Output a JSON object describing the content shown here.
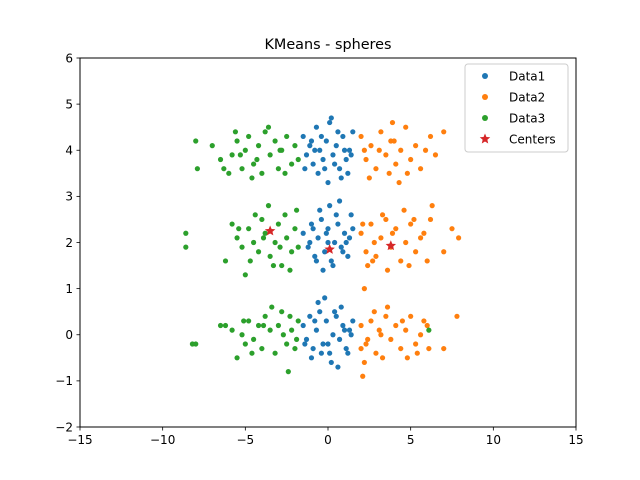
{
  "chart_data": {
    "type": "scatter",
    "title": "KMeans - spheres",
    "xlabel": "",
    "ylabel": "",
    "xlim": [
      -15,
      15
    ],
    "ylim": [
      -2,
      6
    ],
    "xticks": [
      "−15",
      "−10",
      "−5",
      "0",
      "5",
      "10",
      "15"
    ],
    "xtick_values": [
      -15,
      -10,
      -5,
      0,
      5,
      10,
      15
    ],
    "yticks": [
      "−2",
      "−1",
      "0",
      "1",
      "2",
      "3",
      "4",
      "5",
      "6"
    ],
    "ytick_values": [
      -2,
      -1,
      0,
      1,
      2,
      3,
      4,
      5,
      6
    ],
    "grid": false,
    "legend_position": "top-right",
    "series": [
      {
        "name": "Data1",
        "color": "#1f77b4",
        "marker": "circle",
        "points": [
          [
            -1.5,
            4.3
          ],
          [
            -1.3,
            3.9
          ],
          [
            -1.1,
            4.1
          ],
          [
            -0.9,
            3.7
          ],
          [
            -0.7,
            4.5
          ],
          [
            -0.5,
            4.0
          ],
          [
            -0.3,
            3.8
          ],
          [
            -0.1,
            4.2
          ],
          [
            0.1,
            4.6
          ],
          [
            0.3,
            3.9
          ],
          [
            0.5,
            4.1
          ],
          [
            0.7,
            3.6
          ],
          [
            0.9,
            4.3
          ],
          [
            1.1,
            3.8
          ],
          [
            1.3,
            4.0
          ],
          [
            1.5,
            4.4
          ],
          [
            -0.6,
            3.5
          ],
          [
            0.2,
            4.7
          ],
          [
            0.8,
            3.4
          ],
          [
            -1.0,
            4.2
          ],
          [
            1.2,
            3.5
          ],
          [
            -0.2,
            3.6
          ],
          [
            0.6,
            4.4
          ],
          [
            -0.8,
            4.0
          ],
          [
            1.4,
            3.9
          ],
          [
            0.0,
            3.3
          ],
          [
            0.4,
            3.7
          ],
          [
            -1.4,
            3.6
          ],
          [
            1.0,
            4.0
          ],
          [
            -0.4,
            4.3
          ],
          [
            -1.5,
            2.2
          ],
          [
            -1.2,
            1.9
          ],
          [
            -1.0,
            2.4
          ],
          [
            -0.8,
            1.7
          ],
          [
            -0.6,
            2.1
          ],
          [
            -0.4,
            2.5
          ],
          [
            -0.2,
            1.8
          ],
          [
            0.0,
            2.3
          ],
          [
            0.2,
            1.6
          ],
          [
            0.4,
            2.0
          ],
          [
            0.6,
            2.4
          ],
          [
            0.8,
            1.9
          ],
          [
            1.0,
            2.2
          ],
          [
            1.2,
            1.7
          ],
          [
            1.4,
            2.6
          ],
          [
            0.1,
            2.8
          ],
          [
            -0.3,
            1.4
          ],
          [
            0.7,
            2.9
          ],
          [
            -0.9,
            2.3
          ],
          [
            1.1,
            2.0
          ],
          [
            0.3,
            1.5
          ],
          [
            -0.5,
            2.7
          ],
          [
            0.9,
            1.8
          ],
          [
            -1.1,
            2.0
          ],
          [
            1.5,
            2.3
          ],
          [
            0.5,
            2.6
          ],
          [
            -0.7,
            1.6
          ],
          [
            0.0,
            2.0
          ],
          [
            1.3,
            2.1
          ],
          [
            -0.1,
            2.2
          ],
          [
            -1.5,
            0.2
          ],
          [
            -1.3,
            -0.1
          ],
          [
            -1.1,
            0.4
          ],
          [
            -0.9,
            -0.3
          ],
          [
            -0.7,
            0.1
          ],
          [
            -0.5,
            0.5
          ],
          [
            -0.3,
            -0.2
          ],
          [
            -0.1,
            0.3
          ],
          [
            0.1,
            -0.4
          ],
          [
            0.3,
            0.0
          ],
          [
            0.5,
            0.4
          ],
          [
            0.7,
            -0.1
          ],
          [
            0.9,
            0.2
          ],
          [
            1.1,
            -0.3
          ],
          [
            1.3,
            0.1
          ],
          [
            1.5,
            0.3
          ],
          [
            -0.6,
            0.7
          ],
          [
            0.2,
            -0.6
          ],
          [
            0.8,
            0.6
          ],
          [
            -1.0,
            -0.5
          ],
          [
            1.2,
            -0.4
          ],
          [
            -0.2,
            0.8
          ],
          [
            0.6,
            -0.7
          ],
          [
            -0.8,
            0.3
          ],
          [
            1.4,
            0.0
          ],
          [
            0.0,
            -0.2
          ],
          [
            0.4,
            0.5
          ],
          [
            -1.4,
            -0.2
          ],
          [
            1.0,
            0.1
          ],
          [
            -0.4,
            -0.4
          ]
        ]
      },
      {
        "name": "Data2",
        "color": "#ff7f0e",
        "marker": "circle",
        "points": [
          [
            2.0,
            4.3
          ],
          [
            2.3,
            3.8
          ],
          [
            2.6,
            4.1
          ],
          [
            2.9,
            3.6
          ],
          [
            3.2,
            4.4
          ],
          [
            3.5,
            3.9
          ],
          [
            3.8,
            4.2
          ],
          [
            4.1,
            3.7
          ],
          [
            4.4,
            4.0
          ],
          [
            4.7,
            4.5
          ],
          [
            5.0,
            3.8
          ],
          [
            5.3,
            4.1
          ],
          [
            5.6,
            3.6
          ],
          [
            6.2,
            4.3
          ],
          [
            3.9,
            4.6
          ],
          [
            2.5,
            3.4
          ],
          [
            4.8,
            3.5
          ],
          [
            3.1,
            4.0
          ],
          [
            4.3,
            3.3
          ],
          [
            5.9,
            4.0
          ],
          [
            7.0,
            4.4
          ],
          [
            6.5,
            3.9
          ],
          [
            3.7,
            3.5
          ],
          [
            2.2,
            4.0
          ],
          [
            4.0,
            4.2
          ],
          [
            2.0,
            2.2
          ],
          [
            2.3,
            1.8
          ],
          [
            2.6,
            2.4
          ],
          [
            2.9,
            1.7
          ],
          [
            3.2,
            2.1
          ],
          [
            3.5,
            2.5
          ],
          [
            3.8,
            1.9
          ],
          [
            4.1,
            2.3
          ],
          [
            4.4,
            1.6
          ],
          [
            4.7,
            2.0
          ],
          [
            5.0,
            2.4
          ],
          [
            5.3,
            1.8
          ],
          [
            5.6,
            2.1
          ],
          [
            6.0,
            1.6
          ],
          [
            6.2,
            2.5
          ],
          [
            6.3,
            2.8
          ],
          [
            7.0,
            1.8
          ],
          [
            7.5,
            2.3
          ],
          [
            7.9,
            2.1
          ],
          [
            3.3,
            2.6
          ],
          [
            2.4,
            1.5
          ],
          [
            4.6,
            2.7
          ],
          [
            2.8,
            2.0
          ],
          [
            5.8,
            2.2
          ],
          [
            3.6,
            1.4
          ],
          [
            4.9,
            1.5
          ],
          [
            2.1,
            2.4
          ],
          [
            3.9,
            2.2
          ],
          [
            5.2,
            2.5
          ],
          [
            2.7,
            1.6
          ],
          [
            2.0,
            0.2
          ],
          [
            2.3,
            -0.2
          ],
          [
            2.6,
            0.3
          ],
          [
            2.9,
            -0.4
          ],
          [
            3.2,
            0.0
          ],
          [
            3.5,
            0.4
          ],
          [
            3.8,
            -0.1
          ],
          [
            4.1,
            0.2
          ],
          [
            4.4,
            -0.3
          ],
          [
            4.7,
            0.1
          ],
          [
            5.0,
            0.4
          ],
          [
            5.3,
            -0.2
          ],
          [
            5.6,
            0.0
          ],
          [
            6.1,
            -0.3
          ],
          [
            6.0,
            0.2
          ],
          [
            2.1,
            -0.9
          ],
          [
            2.2,
            -0.6
          ],
          [
            7.0,
            -0.3
          ],
          [
            7.8,
            0.4
          ],
          [
            2.2,
            1.0
          ],
          [
            3.3,
            -0.5
          ],
          [
            4.5,
            0.3
          ],
          [
            2.8,
            0.5
          ],
          [
            5.4,
            -0.4
          ],
          [
            3.6,
            0.6
          ],
          [
            2.4,
            -0.1
          ],
          [
            4.8,
            -0.5
          ],
          [
            3.1,
            0.1
          ],
          [
            5.8,
            0.3
          ],
          [
            2.0,
            -0.3
          ]
        ]
      },
      {
        "name": "Data3",
        "color": "#2ca02c",
        "marker": "circle",
        "points": [
          [
            -8.0,
            4.2
          ],
          [
            -7.0,
            4.1
          ],
          [
            -6.5,
            3.8
          ],
          [
            -6.0,
            3.5
          ],
          [
            -5.8,
            3.9
          ],
          [
            -5.5,
            4.2
          ],
          [
            -5.2,
            3.6
          ],
          [
            -5.0,
            4.0
          ],
          [
            -4.8,
            4.3
          ],
          [
            -4.5,
            3.7
          ],
          [
            -4.2,
            4.1
          ],
          [
            -4.0,
            3.5
          ],
          [
            -3.8,
            4.4
          ],
          [
            -3.5,
            3.9
          ],
          [
            -3.2,
            4.2
          ],
          [
            -3.0,
            3.6
          ],
          [
            -2.8,
            4.0
          ],
          [
            -2.5,
            4.3
          ],
          [
            -2.2,
            3.7
          ],
          [
            -2.0,
            4.1
          ],
          [
            -1.8,
            3.8
          ],
          [
            -5.6,
            4.4
          ],
          [
            -3.6,
            4.5
          ],
          [
            -4.6,
            3.4
          ],
          [
            -2.6,
            3.5
          ],
          [
            -7.9,
            3.6
          ],
          [
            -6.3,
            3.6
          ],
          [
            -5.3,
            3.9
          ],
          [
            -2.9,
            4.0
          ],
          [
            -4.3,
            3.8
          ],
          [
            -8.6,
            2.2
          ],
          [
            -8.6,
            1.9
          ],
          [
            -6.2,
            1.6
          ],
          [
            -5.8,
            2.4
          ],
          [
            -5.5,
            2.1
          ],
          [
            -5.2,
            1.9
          ],
          [
            -5.0,
            1.3
          ],
          [
            -4.8,
            2.3
          ],
          [
            -4.5,
            2.0
          ],
          [
            -4.2,
            1.8
          ],
          [
            -4.0,
            2.5
          ],
          [
            -3.8,
            2.2
          ],
          [
            -3.5,
            1.7
          ],
          [
            -3.2,
            2.0
          ],
          [
            -3.0,
            2.4
          ],
          [
            -2.8,
            1.5
          ],
          [
            -2.5,
            2.1
          ],
          [
            -2.2,
            1.8
          ],
          [
            -2.0,
            2.3
          ],
          [
            -1.8,
            1.9
          ],
          [
            -3.6,
            2.8
          ],
          [
            -2.6,
            2.6
          ],
          [
            -4.4,
            2.6
          ],
          [
            -1.9,
            2.7
          ],
          [
            -3.3,
            1.5
          ],
          [
            -2.3,
            1.4
          ],
          [
            -5.4,
            2.3
          ],
          [
            -4.7,
            1.6
          ],
          [
            -2.9,
            1.9
          ],
          [
            -3.9,
            2.1
          ],
          [
            -8.2,
            -0.2
          ],
          [
            -8.0,
            -0.2
          ],
          [
            -6.5,
            0.2
          ],
          [
            -6.2,
            0.2
          ],
          [
            -5.8,
            0.1
          ],
          [
            -5.5,
            -0.5
          ],
          [
            -5.2,
            0.0
          ],
          [
            -5.0,
            -0.2
          ],
          [
            -4.8,
            0.3
          ],
          [
            -4.5,
            -0.1
          ],
          [
            -4.2,
            0.2
          ],
          [
            -4.0,
            -0.3
          ],
          [
            -3.8,
            0.4
          ],
          [
            -3.5,
            0.1
          ],
          [
            -3.2,
            -0.4
          ],
          [
            -3.0,
            0.2
          ],
          [
            -2.8,
            0.5
          ],
          [
            -2.5,
            -0.2
          ],
          [
            -2.2,
            0.1
          ],
          [
            -2.0,
            -0.3
          ],
          [
            -1.8,
            0.3
          ],
          [
            -2.4,
            -0.8
          ],
          [
            -3.4,
            0.6
          ],
          [
            -4.6,
            -0.4
          ],
          [
            -2.7,
            0.0
          ],
          [
            -3.9,
            0.2
          ],
          [
            -1.9,
            -0.1
          ],
          [
            -5.1,
            0.3
          ],
          [
            -2.3,
            0.4
          ],
          [
            6.1,
            0.1
          ]
        ]
      },
      {
        "name": "Centers",
        "color": "#d62728",
        "marker": "star",
        "points": [
          [
            -3.5,
            2.25
          ],
          [
            0.1,
            1.85
          ],
          [
            3.8,
            1.93
          ]
        ]
      }
    ]
  }
}
